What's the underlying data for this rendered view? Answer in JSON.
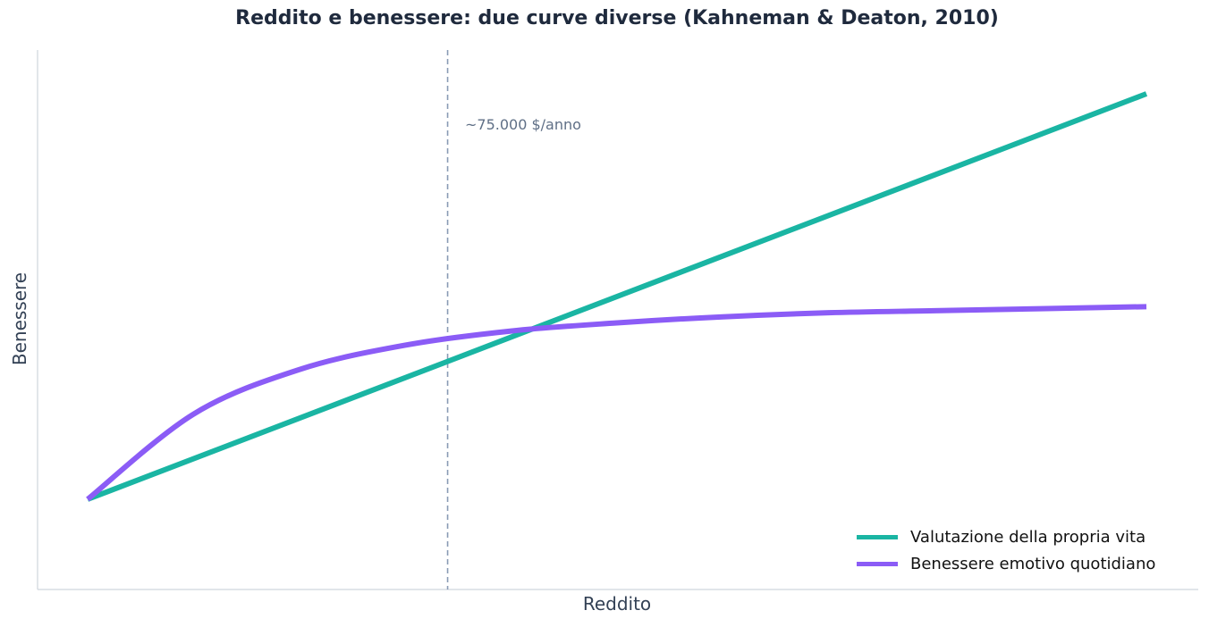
{
  "chart_data": {
    "type": "line",
    "title": "Reddito e benessere: due curve diverse (Kahneman & Deaton, 2010)",
    "xlabel": "Reddito",
    "ylabel": "Benessere",
    "grid": false,
    "xticks": false,
    "yticks": false,
    "legend_position": "bottom-right",
    "annotation": {
      "text": "~75.000 $/anno",
      "x": 0.34
    },
    "series": [
      {
        "name": "Valutazione della propria vita",
        "color": "#1ab5a3",
        "x": [
          0,
          1
        ],
        "y": [
          0.0,
          1.0
        ]
      },
      {
        "name": "Benessere emotivo quotidiano",
        "color": "#8b5cf6",
        "x": [
          0,
          0.1,
          0.2,
          0.3,
          0.4,
          0.5,
          0.6,
          0.7,
          0.8,
          0.9,
          1.0
        ],
        "y": [
          0.0,
          0.21,
          0.32,
          0.38,
          0.415,
          0.435,
          0.45,
          0.46,
          0.465,
          0.47,
          0.475
        ]
      }
    ]
  }
}
